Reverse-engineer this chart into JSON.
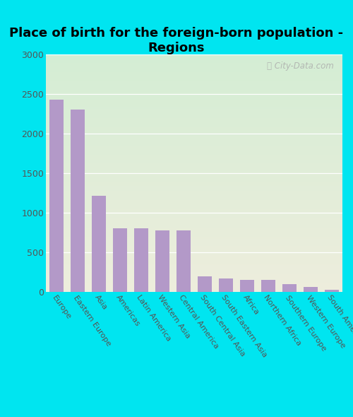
{
  "title": "Place of birth for the foreign-born population -\nRegions",
  "categories": [
    "Europe",
    "Eastern Europe",
    "Asia",
    "Americas",
    "Latin America",
    "Western Asia",
    "Central America",
    "South Central Asia",
    "South Eastern Asia",
    "Africa",
    "Northern Africa",
    "Southern Europe",
    "Western Europe",
    "South America"
  ],
  "values": [
    2430,
    2300,
    1210,
    800,
    800,
    775,
    775,
    195,
    170,
    155,
    155,
    95,
    65,
    25
  ],
  "bar_color": "#b399c8",
  "bg_outer": "#00e5f0",
  "bg_inner_top_left": "#d4edd4",
  "bg_inner_bottom_right": "#eeeedd",
  "ylim": [
    0,
    3000
  ],
  "yticks": [
    0,
    500,
    1000,
    1500,
    2000,
    2500,
    3000
  ],
  "title_fontsize": 13,
  "tick_fontsize": 8,
  "watermark_text": "ⓘ City-Data.com"
}
